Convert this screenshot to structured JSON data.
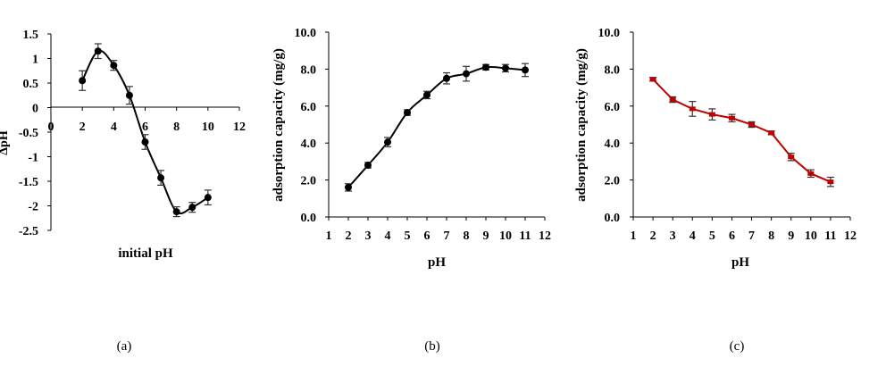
{
  "chart_data": [
    {
      "type": "line",
      "caption": "(a)",
      "xlabel": "initial pH",
      "ylabel": "ΔpH",
      "xlim": [
        0,
        12
      ],
      "ylim": [
        -2.5,
        1.5
      ],
      "x_ticks": [
        "0",
        "2",
        "4",
        "6",
        "8",
        "10",
        "12"
      ],
      "y_ticks": [
        "1.5",
        "1",
        "0.5",
        "0",
        "-0.5",
        "-1",
        "-1.5",
        "-2",
        "-2.5"
      ],
      "color": "#000000",
      "smooth": true,
      "series": [
        {
          "x": [
            2,
            3,
            4,
            5,
            6,
            7,
            8,
            9,
            10
          ],
          "values": [
            0.55,
            1.15,
            0.86,
            0.25,
            -0.7,
            -1.43,
            -2.12,
            -2.03,
            -1.83
          ],
          "errors": [
            0.2,
            0.15,
            0.1,
            0.18,
            0.15,
            0.15,
            0.1,
            0.1,
            0.15
          ]
        }
      ]
    },
    {
      "type": "line",
      "caption": "(b)",
      "xlabel": "pH",
      "ylabel": "adsorption capacity (mg/g)",
      "xlim": [
        1,
        12
      ],
      "ylim": [
        0,
        10
      ],
      "x_ticks": [
        "1",
        "2",
        "3",
        "4",
        "5",
        "6",
        "7",
        "8",
        "9",
        "10",
        "11",
        "12"
      ],
      "y_ticks": [
        "0.0",
        "2.0",
        "4.0",
        "6.0",
        "8.0",
        "10.0"
      ],
      "color": "#000000",
      "smooth": true,
      "series": [
        {
          "x": [
            2,
            3,
            4,
            5,
            6,
            7,
            8,
            9,
            10,
            11
          ],
          "values": [
            1.6,
            2.8,
            4.05,
            5.65,
            6.6,
            7.5,
            7.75,
            8.1,
            8.05,
            7.95
          ],
          "errors": [
            0.2,
            0.15,
            0.25,
            0.15,
            0.2,
            0.3,
            0.4,
            0.15,
            0.2,
            0.35
          ]
        }
      ]
    },
    {
      "type": "line",
      "caption": "(c)",
      "xlabel": "pH",
      "ylabel": "adsorption capacity (mg/g)",
      "xlim": [
        1,
        12
      ],
      "ylim": [
        0,
        10
      ],
      "x_ticks": [
        "1",
        "2",
        "3",
        "4",
        "5",
        "6",
        "7",
        "8",
        "9",
        "10",
        "11",
        "12"
      ],
      "y_ticks": [
        "0.0",
        "2.0",
        "4.0",
        "6.0",
        "8.0",
        "10.0"
      ],
      "color": "#c00000",
      "smooth": false,
      "series": [
        {
          "x": [
            2,
            3,
            4,
            5,
            6,
            7,
            8,
            9,
            10,
            11
          ],
          "values": [
            7.45,
            6.35,
            5.85,
            5.55,
            5.35,
            5.0,
            4.55,
            3.25,
            2.35,
            1.9
          ],
          "errors": [
            0.1,
            0.15,
            0.4,
            0.3,
            0.2,
            0.15,
            0.1,
            0.2,
            0.2,
            0.25
          ]
        }
      ]
    }
  ]
}
